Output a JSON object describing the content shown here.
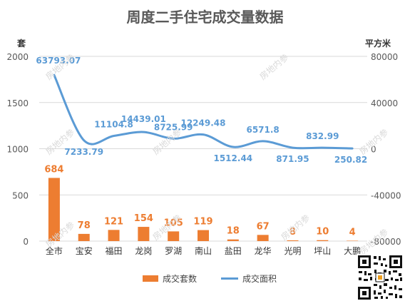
{
  "chart_data": {
    "type": "bar",
    "title": "周度二手住宅成交量数据",
    "categories": [
      "全市",
      "宝安",
      "福田",
      "龙岗",
      "罗湖",
      "南山",
      "盐田",
      "龙华",
      "光明",
      "坪山",
      "大鹏"
    ],
    "series": [
      {
        "name": "成交套数",
        "type": "bar",
        "axis": "left",
        "color": "#ED7D31",
        "values": [
          684,
          78,
          121,
          154,
          105,
          119,
          18,
          67,
          8,
          10,
          4
        ]
      },
      {
        "name": "成交面积",
        "type": "line",
        "axis": "right",
        "color": "#5B9BD5",
        "values": [
          63793.07,
          7233.79,
          11104.8,
          14439.01,
          8725.99,
          12249.48,
          1512.44,
          6571.8,
          871.95,
          832.99,
          250.82
        ],
        "labels": [
          "63793.07",
          "7233.79",
          "11104.8",
          "14439.01",
          "8725.99",
          "12249.48",
          "1512.44",
          "6571.8",
          "871.95",
          "832.99",
          "250.82"
        ]
      }
    ],
    "left_axis": {
      "label": "套",
      "ylim": [
        0,
        2000
      ],
      "ticks": [
        0,
        500,
        1000,
        1500,
        2000
      ]
    },
    "right_axis": {
      "label": "平方米",
      "ylim": [
        -80000,
        80000
      ],
      "ticks": [
        -80000,
        -40000,
        0,
        40000,
        80000
      ],
      "tick_labels": [
        "-80000",
        "-40000",
        "0",
        "40000",
        "80000"
      ]
    },
    "grid": true,
    "legend": "bottom-center"
  },
  "watermark": "房地内参",
  "qr_icon": "qr-code-icon"
}
